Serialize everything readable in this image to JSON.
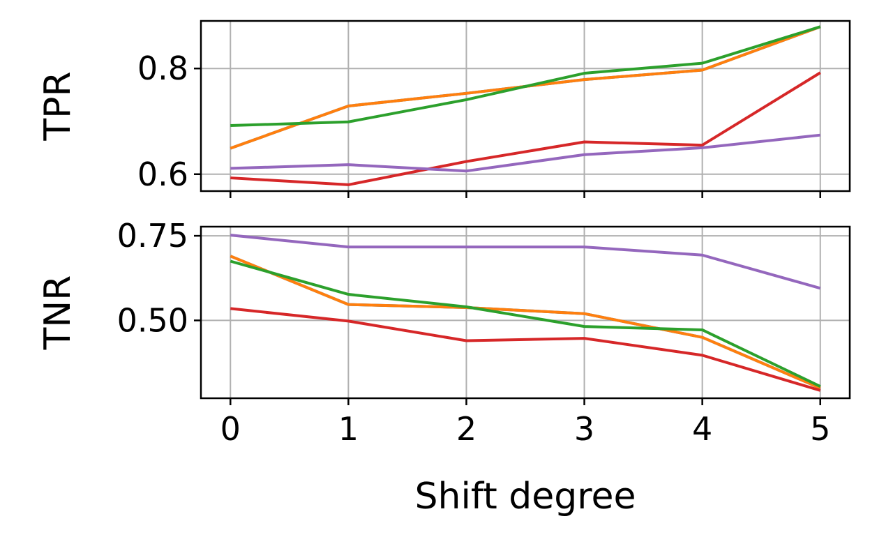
{
  "chart_data": [
    {
      "type": "line",
      "ylabel": "TPR",
      "xlabel": "",
      "x": [
        0,
        1,
        2,
        3,
        4,
        5
      ],
      "xticks": [
        "0",
        "1",
        "2",
        "3",
        "4",
        "5"
      ],
      "xlim": [
        -0.25,
        5.25
      ],
      "ylim": [
        0.568,
        0.89
      ],
      "yticks": [
        "0.6",
        "0.8"
      ],
      "ytick_values": [
        0.6,
        0.8
      ],
      "show_xtick_labels": false,
      "grid": true,
      "series": [
        {
          "color": "#1f77b4",
          "values": [
            0.649,
            0.729,
            0.753,
            0.779,
            0.797,
            0.879
          ]
        },
        {
          "color": "#ff7f0e",
          "values": [
            0.649,
            0.729,
            0.753,
            0.779,
            0.797,
            0.879
          ]
        },
        {
          "color": "#2ca02c",
          "values": [
            0.692,
            0.699,
            0.741,
            0.791,
            0.81,
            0.879
          ]
        },
        {
          "color": "#d62728",
          "values": [
            0.593,
            0.58,
            0.624,
            0.661,
            0.655,
            0.792
          ]
        },
        {
          "color": "#9467bd",
          "values": [
            0.611,
            0.618,
            0.606,
            0.637,
            0.65,
            0.674
          ]
        }
      ]
    },
    {
      "type": "line",
      "ylabel": "TNR",
      "xlabel": "Shift degree",
      "x": [
        0,
        1,
        2,
        3,
        4,
        5
      ],
      "xticks": [
        "0",
        "1",
        "2",
        "3",
        "4",
        "5"
      ],
      "xlim": [
        -0.25,
        5.25
      ],
      "ylim": [
        0.27,
        0.777
      ],
      "yticks": [
        "0.50",
        "0.75"
      ],
      "ytick_values": [
        0.5,
        0.75
      ],
      "show_xtick_labels": true,
      "grid": true,
      "series": [
        {
          "color": "#1f77b4",
          "values": [
            0.69,
            0.547,
            0.538,
            0.52,
            0.45,
            0.3
          ]
        },
        {
          "color": "#ff7f0e",
          "values": [
            0.69,
            0.547,
            0.538,
            0.52,
            0.45,
            0.3
          ]
        },
        {
          "color": "#2ca02c",
          "values": [
            0.675,
            0.577,
            0.54,
            0.482,
            0.472,
            0.305
          ]
        },
        {
          "color": "#d62728",
          "values": [
            0.535,
            0.498,
            0.44,
            0.447,
            0.397,
            0.293
          ]
        },
        {
          "color": "#9467bd",
          "values": [
            0.752,
            0.717,
            0.717,
            0.717,
            0.693,
            0.595
          ]
        }
      ]
    }
  ]
}
